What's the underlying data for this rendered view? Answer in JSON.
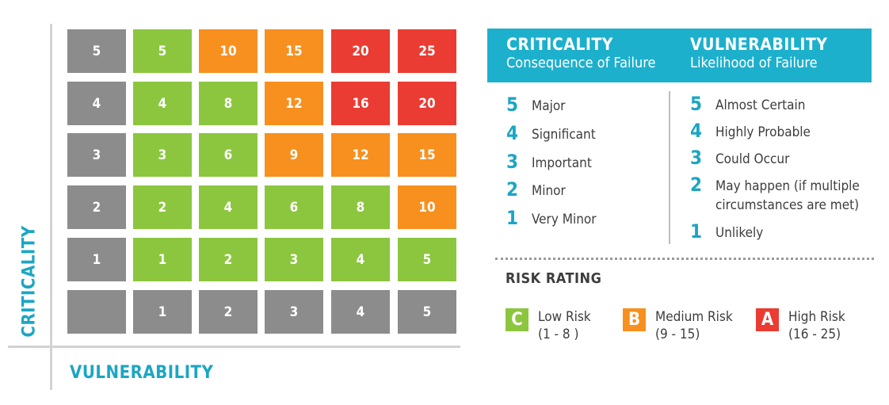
{
  "axes": {
    "y_label": "CRITICALITY",
    "x_label": "VULNERABILITY"
  },
  "colors": {
    "gray": "#8c8c8c",
    "green": "#8cc63f",
    "orange": "#f7901e",
    "red": "#ea3c33",
    "teal": "#1db0cd"
  },
  "matrix": {
    "rows": [
      [
        "5",
        "5",
        "10",
        "15",
        "20",
        "25"
      ],
      [
        "4",
        "4",
        "8",
        "12",
        "16",
        "20"
      ],
      [
        "3",
        "3",
        "6",
        "9",
        "12",
        "15"
      ],
      [
        "2",
        "2",
        "4",
        "6",
        "8",
        "10"
      ],
      [
        "1",
        "1",
        "2",
        "3",
        "4",
        "5"
      ],
      [
        "",
        "1",
        "2",
        "3",
        "4",
        "5"
      ]
    ],
    "colors": [
      [
        "gray",
        "green",
        "orange",
        "orange",
        "red",
        "red"
      ],
      [
        "gray",
        "green",
        "green",
        "orange",
        "red",
        "red"
      ],
      [
        "gray",
        "green",
        "green",
        "orange",
        "orange",
        "orange"
      ],
      [
        "gray",
        "green",
        "green",
        "green",
        "green",
        "orange"
      ],
      [
        "gray",
        "green",
        "green",
        "green",
        "green",
        "green"
      ],
      [
        "gray",
        "gray",
        "gray",
        "gray",
        "gray",
        "gray"
      ]
    ]
  },
  "legend": {
    "criticality": {
      "title": "CRITICALITY",
      "subtitle": "Consequence of Failure",
      "items": [
        {
          "num": "5",
          "label": "Major"
        },
        {
          "num": "4",
          "label": "Significant"
        },
        {
          "num": "3",
          "label": "Important"
        },
        {
          "num": "2",
          "label": "Minor"
        },
        {
          "num": "1",
          "label": "Very Minor"
        }
      ]
    },
    "vulnerability": {
      "title": "VULNERABILITY",
      "subtitle": "Likelihood of Failure",
      "items": [
        {
          "num": "5",
          "label": "Almost Certain"
        },
        {
          "num": "4",
          "label": "Highly Probable"
        },
        {
          "num": "3",
          "label": "Could Occur"
        },
        {
          "num": "2",
          "label": "May happen (if multiple",
          "label2": "circumstances are met)"
        },
        {
          "num": "1",
          "label": "Unlikely"
        }
      ]
    }
  },
  "risk_rating": {
    "title": "RISK RATING",
    "items": [
      {
        "letter": "C",
        "label": "Low Risk",
        "range": "(1 - 8 )",
        "color": "green"
      },
      {
        "letter": "B",
        "label": "Medium Risk",
        "range": "(9 - 15)",
        "color": "orange"
      },
      {
        "letter": "A",
        "label": "High Risk",
        "range": "(16 - 25)",
        "color": "red"
      }
    ]
  }
}
